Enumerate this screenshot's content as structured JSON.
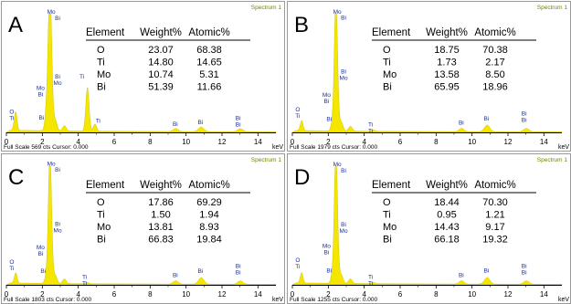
{
  "figure": {
    "panels": [
      {
        "letter": "A",
        "spectrum_label": "Spectrum 1",
        "full_scale_text": "Full Scale 569 cts Cursor: 0.000",
        "table": {
          "headers": [
            "Element",
            "Weight%",
            "Atomic%"
          ],
          "rows": [
            [
              "O",
              "23.07",
              "68.38"
            ],
            [
              "Ti",
              "14.80",
              "14.65"
            ],
            [
              "Mo",
              "10.74",
              "5.31"
            ],
            [
              "Bi",
              "51.39",
              "11.66"
            ]
          ]
        }
      },
      {
        "letter": "B",
        "spectrum_label": "Spectrum 1",
        "full_scale_text": "Full Scale 1979 cts Cursor: 0.000",
        "table": {
          "headers": [
            "Element",
            "Weight%",
            "Atomic%"
          ],
          "rows": [
            [
              "O",
              "18.75",
              "70.38"
            ],
            [
              "Ti",
              "1.73",
              "2.17"
            ],
            [
              "Mo",
              "13.58",
              "8.50"
            ],
            [
              "Bi",
              "65.95",
              "18.96"
            ]
          ]
        }
      },
      {
        "letter": "C",
        "spectrum_label": "Spectrum 1",
        "full_scale_text": "Full Scale 1803 cts Cursor: 0.000",
        "table": {
          "headers": [
            "Element",
            "Weight%",
            "Atomic%"
          ],
          "rows": [
            [
              "O",
              "17.86",
              "69.29"
            ],
            [
              "Ti",
              "1.50",
              "1.94"
            ],
            [
              "Mo",
              "13.81",
              "8.93"
            ],
            [
              "Bi",
              "66.83",
              "19.84"
            ]
          ]
        }
      },
      {
        "letter": "D",
        "spectrum_label": "Spectrum 1",
        "full_scale_text": "Full Scale 1255 cts Cursor: 0.000",
        "table": {
          "headers": [
            "Element",
            "Weight%",
            "Atomic%"
          ],
          "rows": [
            [
              "O",
              "18.44",
              "70.30"
            ],
            [
              "Ti",
              "0.95",
              "1.21"
            ],
            [
              "Mo",
              "14.43",
              "9.17"
            ],
            [
              "Bi",
              "66.18",
              "19.32"
            ]
          ]
        }
      }
    ]
  },
  "chart_data": [
    {
      "type": "area",
      "panel": "A",
      "xlabel": "keV",
      "xlim": [
        0,
        15
      ],
      "x_ticks": [
        0,
        2,
        4,
        6,
        8,
        10,
        12,
        14
      ],
      "x_tick_labels": [
        "0",
        "2",
        "4",
        "6",
        "8",
        "10",
        "12",
        "14"
      ],
      "ylim": [
        0,
        569
      ],
      "fill_color": "#f5e600",
      "peaks": [
        {
          "x": 0.45,
          "y": 25,
          "width": 0.07
        },
        {
          "x": 0.53,
          "y": 75,
          "width": 0.07
        },
        {
          "x": 2.29,
          "y": 180,
          "width": 0.1
        },
        {
          "x": 2.42,
          "y": 569,
          "width": 0.08
        },
        {
          "x": 2.52,
          "y": 160,
          "width": 0.09
        },
        {
          "x": 2.74,
          "y": 45,
          "width": 0.09
        },
        {
          "x": 3.23,
          "y": 25,
          "width": 0.1
        },
        {
          "x": 4.51,
          "y": 210,
          "width": 0.09
        },
        {
          "x": 4.93,
          "y": 35,
          "width": 0.09
        },
        {
          "x": 9.42,
          "y": 14,
          "width": 0.14
        },
        {
          "x": 10.84,
          "y": 22,
          "width": 0.15
        },
        {
          "x": 13.02,
          "y": 14,
          "width": 0.15
        }
      ],
      "background": 8,
      "peak_labels": [
        {
          "x": 0.3,
          "y": 80,
          "lines": [
            "O",
            "Ti"
          ]
        },
        {
          "x": 1.9,
          "y": 195,
          "lines": [
            "Mo",
            "Bi"
          ]
        },
        {
          "x": 1.95,
          "y": 52,
          "lines": [
            "Bi"
          ]
        },
        {
          "x": 2.5,
          "y": 560,
          "lines": [
            "Mo"
          ]
        },
        {
          "x": 2.85,
          "y": 530,
          "lines": [
            "Bi"
          ]
        },
        {
          "x": 2.85,
          "y": 250,
          "lines": [
            "Bi",
            "Mo"
          ]
        },
        {
          "x": 4.2,
          "y": 250,
          "lines": [
            "Ti"
          ]
        },
        {
          "x": 5.1,
          "y": 38,
          "lines": [
            "Ti"
          ]
        },
        {
          "x": 9.4,
          "y": 22,
          "lines": [
            "Bi"
          ]
        },
        {
          "x": 10.8,
          "y": 30,
          "lines": [
            "Bi"
          ]
        },
        {
          "x": 12.9,
          "y": 50,
          "lines": [
            "Bi",
            "Bi"
          ]
        }
      ]
    },
    {
      "type": "area",
      "panel": "B",
      "xlabel": "keV",
      "xlim": [
        0,
        15
      ],
      "x_ticks": [
        0,
        2,
        4,
        6,
        8,
        10,
        12,
        14
      ],
      "x_tick_labels": [
        "0",
        "2",
        "4",
        "6",
        "8",
        "10",
        "12",
        "14"
      ],
      "ylim": [
        0,
        1979
      ],
      "fill_color": "#f5e600",
      "peaks": [
        {
          "x": 0.45,
          "y": 30,
          "width": 0.07
        },
        {
          "x": 0.53,
          "y": 150,
          "width": 0.07
        },
        {
          "x": 2.29,
          "y": 250,
          "width": 0.1
        },
        {
          "x": 2.42,
          "y": 1979,
          "width": 0.08
        },
        {
          "x": 2.52,
          "y": 350,
          "width": 0.09
        },
        {
          "x": 2.74,
          "y": 130,
          "width": 0.09
        },
        {
          "x": 3.23,
          "y": 80,
          "width": 0.1
        },
        {
          "x": 4.51,
          "y": 20,
          "width": 0.09
        },
        {
          "x": 9.42,
          "y": 55,
          "width": 0.14
        },
        {
          "x": 10.84,
          "y": 110,
          "width": 0.15
        },
        {
          "x": 13.02,
          "y": 55,
          "width": 0.15
        }
      ],
      "background": 25,
      "peak_labels": [
        {
          "x": 0.3,
          "y": 320,
          "lines": [
            "O",
            "Ti"
          ]
        },
        {
          "x": 1.9,
          "y": 560,
          "lines": [
            "Mo",
            "Bi"
          ]
        },
        {
          "x": 2.05,
          "y": 160,
          "lines": [
            "Bi"
          ]
        },
        {
          "x": 2.5,
          "y": 1950,
          "lines": [
            "Mo"
          ]
        },
        {
          "x": 2.85,
          "y": 1850,
          "lines": [
            "Bi"
          ]
        },
        {
          "x": 2.85,
          "y": 950,
          "lines": [
            "Bi",
            "Mo"
          ]
        },
        {
          "x": 4.35,
          "y": 65,
          "lines": [
            "Ti",
            "Ti"
          ]
        },
        {
          "x": 9.4,
          "y": 100,
          "lines": [
            "Bi"
          ]
        },
        {
          "x": 10.8,
          "y": 170,
          "lines": [
            "Bi"
          ]
        },
        {
          "x": 12.9,
          "y": 250,
          "lines": [
            "Bi",
            "Bi"
          ]
        }
      ]
    },
    {
      "type": "area",
      "panel": "C",
      "xlabel": "keV",
      "xlim": [
        0,
        15
      ],
      "x_ticks": [
        0,
        2,
        4,
        6,
        8,
        10,
        12,
        14
      ],
      "x_tick_labels": [
        "0",
        "2",
        "4",
        "6",
        "8",
        "10",
        "12",
        "14"
      ],
      "ylim": [
        0,
        1803
      ],
      "fill_color": "#f5e600",
      "peaks": [
        {
          "x": 0.45,
          "y": 30,
          "width": 0.07
        },
        {
          "x": 0.53,
          "y": 140,
          "width": 0.07
        },
        {
          "x": 2.29,
          "y": 230,
          "width": 0.1
        },
        {
          "x": 2.42,
          "y": 1803,
          "width": 0.08
        },
        {
          "x": 2.52,
          "y": 320,
          "width": 0.09
        },
        {
          "x": 2.74,
          "y": 110,
          "width": 0.09
        },
        {
          "x": 3.23,
          "y": 70,
          "width": 0.1
        },
        {
          "x": 4.51,
          "y": 18,
          "width": 0.09
        },
        {
          "x": 9.42,
          "y": 50,
          "width": 0.14
        },
        {
          "x": 10.84,
          "y": 100,
          "width": 0.15
        },
        {
          "x": 13.02,
          "y": 50,
          "width": 0.15
        }
      ],
      "background": 22,
      "peak_labels": [
        {
          "x": 0.3,
          "y": 290,
          "lines": [
            "O",
            "Ti"
          ]
        },
        {
          "x": 1.9,
          "y": 510,
          "lines": [
            "Mo",
            "Bi"
          ]
        },
        {
          "x": 2.05,
          "y": 150,
          "lines": [
            "Bi"
          ]
        },
        {
          "x": 2.5,
          "y": 1780,
          "lines": [
            "Mo"
          ]
        },
        {
          "x": 2.85,
          "y": 1690,
          "lines": [
            "Bi"
          ]
        },
        {
          "x": 2.85,
          "y": 870,
          "lines": [
            "Bi",
            "Mo"
          ]
        },
        {
          "x": 4.35,
          "y": 60,
          "lines": [
            "Ti",
            "Ti"
          ]
        },
        {
          "x": 9.4,
          "y": 90,
          "lines": [
            "Bi"
          ]
        },
        {
          "x": 10.8,
          "y": 155,
          "lines": [
            "Bi"
          ]
        },
        {
          "x": 12.9,
          "y": 230,
          "lines": [
            "Bi",
            "Bi"
          ]
        }
      ]
    },
    {
      "type": "area",
      "panel": "D",
      "xlabel": "keV",
      "xlim": [
        0,
        15
      ],
      "x_ticks": [
        0,
        2,
        4,
        6,
        8,
        10,
        12,
        14
      ],
      "x_tick_labels": [
        "0",
        "2",
        "4",
        "6",
        "8",
        "10",
        "12",
        "14"
      ],
      "ylim": [
        0,
        1255
      ],
      "fill_color": "#f5e600",
      "peaks": [
        {
          "x": 0.45,
          "y": 25,
          "width": 0.07
        },
        {
          "x": 0.53,
          "y": 95,
          "width": 0.07
        },
        {
          "x": 2.29,
          "y": 170,
          "width": 0.1
        },
        {
          "x": 2.42,
          "y": 1255,
          "width": 0.08
        },
        {
          "x": 2.52,
          "y": 230,
          "width": 0.09
        },
        {
          "x": 2.74,
          "y": 80,
          "width": 0.09
        },
        {
          "x": 3.23,
          "y": 50,
          "width": 0.1
        },
        {
          "x": 4.51,
          "y": 12,
          "width": 0.09
        },
        {
          "x": 9.42,
          "y": 35,
          "width": 0.14
        },
        {
          "x": 10.84,
          "y": 70,
          "width": 0.15
        },
        {
          "x": 13.02,
          "y": 35,
          "width": 0.15
        }
      ],
      "background": 16,
      "peak_labels": [
        {
          "x": 0.3,
          "y": 220,
          "lines": [
            "O",
            "Ti"
          ]
        },
        {
          "x": 1.9,
          "y": 370,
          "lines": [
            "Mo",
            "Bi"
          ]
        },
        {
          "x": 2.05,
          "y": 110,
          "lines": [
            "Bi"
          ]
        },
        {
          "x": 2.5,
          "y": 1235,
          "lines": [
            "Mo"
          ]
        },
        {
          "x": 2.85,
          "y": 1170,
          "lines": [
            "Bi"
          ]
        },
        {
          "x": 2.85,
          "y": 600,
          "lines": [
            "Bi",
            "Mo"
          ]
        },
        {
          "x": 4.35,
          "y": 45,
          "lines": [
            "Ti",
            "Ti"
          ]
        },
        {
          "x": 9.4,
          "y": 65,
          "lines": [
            "Bi"
          ]
        },
        {
          "x": 10.8,
          "y": 110,
          "lines": [
            "Bi"
          ]
        },
        {
          "x": 12.9,
          "y": 160,
          "lines": [
            "Bi",
            "Bi"
          ]
        }
      ]
    }
  ]
}
